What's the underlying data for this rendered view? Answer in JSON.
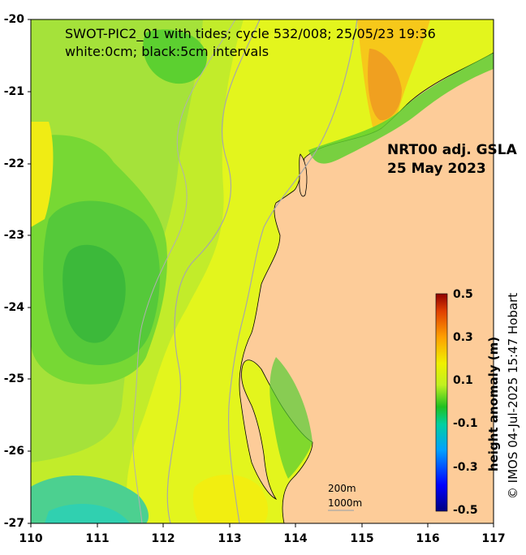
{
  "header": {
    "line1": "SWOT-PIC2_01 with tides; cycle 532/008; 25/05/23 19:36",
    "line2": "white:0cm; black:5cm intervals"
  },
  "product": {
    "line1": "NRT00 adj. GSLA",
    "line2": "25 May 2023"
  },
  "axes": {
    "lat_ticks": [
      "-20",
      "-21",
      "-22",
      "-23",
      "-24",
      "-25",
      "-26",
      "-27"
    ],
    "lon_ticks": [
      "110",
      "111",
      "112",
      "113",
      "114",
      "115",
      "116",
      "117"
    ]
  },
  "colorbar": {
    "title": "height anomaly (m)",
    "labels": [
      "0.5",
      "0.3",
      "0.1",
      "-0.1",
      "-0.3",
      "-0.5"
    ],
    "range": [
      -0.5,
      0.5
    ]
  },
  "isobath_legend": {
    "shallow": "200m",
    "deep": "1000m"
  },
  "credit": "© IMOS 04-Jul-2025 15:47 Hobart",
  "colors": {
    "land": "#fdcc99",
    "anomaly_high": "#e8f51c",
    "anomaly_mid": "#b8ea30",
    "anomaly_low": "#3fcb2b",
    "isobath": "#a8a8a8"
  }
}
